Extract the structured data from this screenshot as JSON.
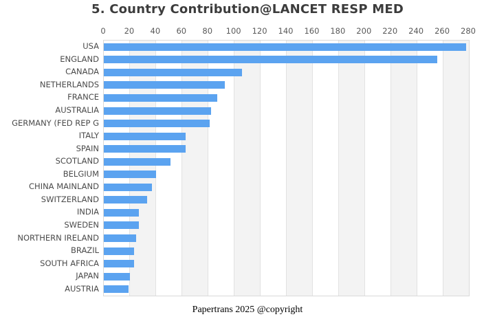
{
  "title": "5. Country Contribution@LANCET RESP MED",
  "footer": "Papertrans 2025 @copyright",
  "chart_data": {
    "type": "bar",
    "orientation": "horizontal",
    "title": "5. Country Contribution@LANCET RESP MED",
    "xlabel": "",
    "ylabel": "",
    "axis_position": "top",
    "xlim": [
      0,
      280
    ],
    "x_ticks": [
      0,
      20,
      40,
      60,
      80,
      100,
      120,
      140,
      160,
      180,
      200,
      220,
      240,
      260,
      280
    ],
    "grid": true,
    "legend": "none",
    "categories": [
      "USA",
      "ENGLAND",
      "CANADA",
      "NETHERLANDS",
      "FRANCE",
      "AUSTRALIA",
      "GERMANY (FED REP G",
      "ITALY",
      "SPAIN",
      "SCOTLAND",
      "BELGIUM",
      "CHINA MAINLAND",
      "SWITZERLAND",
      "INDIA",
      "SWEDEN",
      "NORTHERN IRELAND",
      "BRAZIL",
      "SOUTH AFRICA",
      "JAPAN",
      "AUSTRIA"
    ],
    "values": [
      278,
      256,
      106,
      93,
      87,
      82,
      81,
      63,
      63,
      51,
      40,
      37,
      33,
      27,
      27,
      25,
      23,
      23,
      20,
      19
    ],
    "colors": {
      "bar": "#5BA3F0",
      "stripe": "#F3F3F3",
      "stripe_alt": "#FFFFFF",
      "gridline": "#E2E2E2",
      "plot_border": "#D9D9D9",
      "title_text": "#3C3C3C",
      "category_text": "#4A4A4A",
      "tick_text": "#595959",
      "background": "#FFFFFF"
    }
  }
}
